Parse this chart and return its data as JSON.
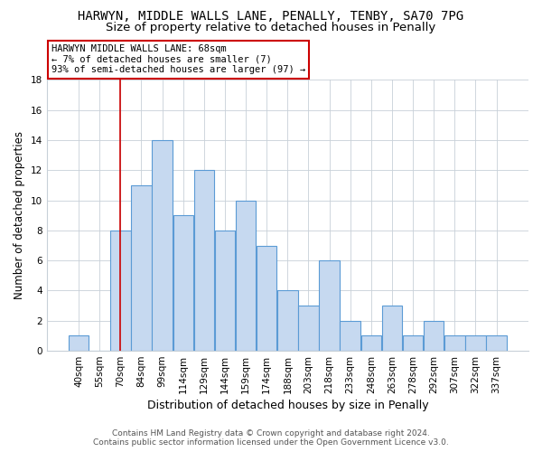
{
  "title": "HARWYN, MIDDLE WALLS LANE, PENALLY, TENBY, SA70 7PG",
  "subtitle": "Size of property relative to detached houses in Penally",
  "xlabel": "Distribution of detached houses by size in Penally",
  "ylabel": "Number of detached properties",
  "bar_labels": [
    "40sqm",
    "55sqm",
    "70sqm",
    "84sqm",
    "99sqm",
    "114sqm",
    "129sqm",
    "144sqm",
    "159sqm",
    "174sqm",
    "188sqm",
    "203sqm",
    "218sqm",
    "233sqm",
    "248sqm",
    "263sqm",
    "278sqm",
    "292sqm",
    "307sqm",
    "322sqm",
    "337sqm"
  ],
  "bar_values": [
    1,
    0,
    8,
    11,
    14,
    9,
    12,
    8,
    10,
    7,
    4,
    3,
    6,
    2,
    1,
    3,
    1,
    2,
    1,
    1,
    1
  ],
  "bar_color": "#c6d9f0",
  "bar_edge_color": "#5b9bd5",
  "grid_color": "#c8d0d8",
  "vline_x_index": 2,
  "vline_color": "#cc0000",
  "annotation_title": "HARWYN MIDDLE WALLS LANE: 68sqm",
  "annotation_line1": "← 7% of detached houses are smaller (7)",
  "annotation_line2": "93% of semi-detached houses are larger (97) →",
  "annotation_box_color": "#ffffff",
  "annotation_box_edge_color": "#cc0000",
  "footer1": "Contains HM Land Registry data © Crown copyright and database right 2024.",
  "footer2": "Contains public sector information licensed under the Open Government Licence v3.0.",
  "ylim": [
    0,
    18
  ],
  "title_fontsize": 10,
  "subtitle_fontsize": 9.5,
  "ylabel_fontsize": 8.5,
  "xlabel_fontsize": 9,
  "tick_fontsize": 7.5,
  "footer_fontsize": 6.5
}
